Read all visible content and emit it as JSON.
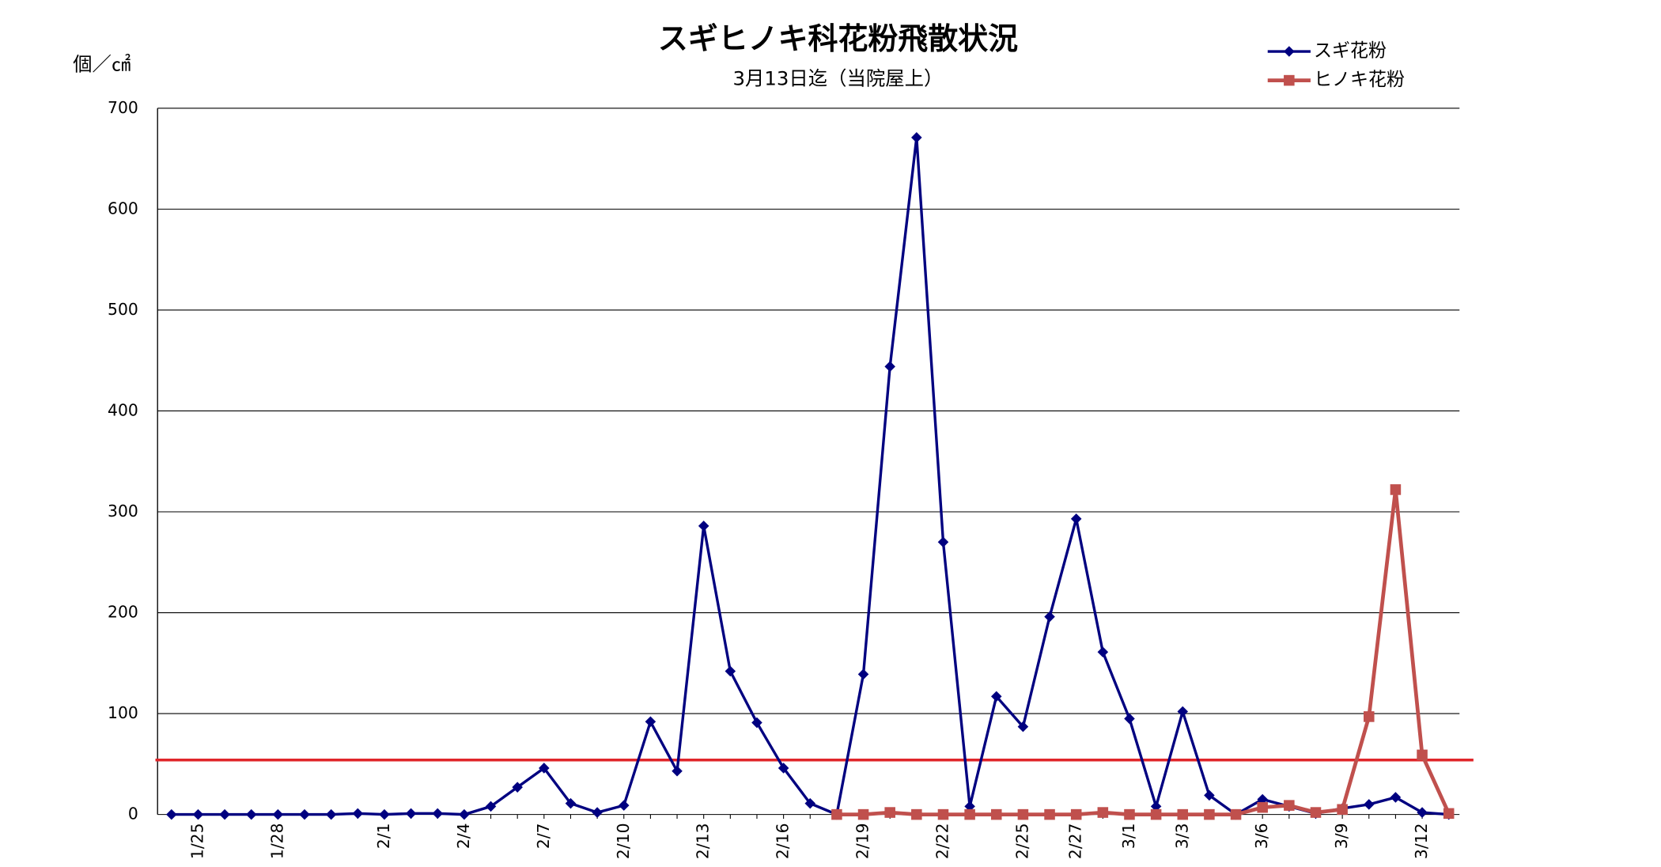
{
  "chart_data": {
    "type": "line",
    "title": "スギヒノキ科花粉飛散状況",
    "subtitle": "3月13日迄（当院屋上）",
    "y_label": "個／㎠",
    "categories": [
      null,
      "1/25",
      null,
      null,
      "1/28",
      null,
      null,
      null,
      "2/1",
      null,
      null,
      "2/4",
      null,
      null,
      "2/7",
      null,
      null,
      "2/10",
      null,
      null,
      "2/13",
      null,
      null,
      "2/16",
      null,
      null,
      "2/19",
      null,
      null,
      "2/22",
      null,
      null,
      "2/25",
      null,
      "2/27",
      null,
      "3/1",
      null,
      "3/3",
      null,
      null,
      "3/6",
      null,
      null,
      "3/9",
      null,
      null,
      "3/12",
      null
    ],
    "series": [
      {
        "name": "スギ花粉",
        "color": "#000080",
        "marker": "diamond",
        "values": [
          0,
          0,
          0,
          0,
          0,
          0,
          0,
          1,
          0,
          1,
          1,
          0,
          8,
          27,
          46,
          11,
          2,
          9,
          92,
          43,
          286,
          142,
          91,
          46,
          11,
          0,
          139,
          444,
          671,
          270,
          8,
          117,
          87,
          196,
          293,
          161,
          95,
          8,
          102,
          19,
          0,
          15,
          8,
          1,
          6,
          10,
          17,
          2,
          0
        ]
      },
      {
        "name": "ヒノキ花粉",
        "color": "#c0504d",
        "marker": "square",
        "values": [
          null,
          null,
          null,
          null,
          null,
          null,
          null,
          null,
          null,
          null,
          null,
          null,
          null,
          null,
          null,
          null,
          null,
          null,
          null,
          null,
          null,
          null,
          null,
          null,
          null,
          0,
          0,
          2,
          0,
          0,
          0,
          0,
          0,
          0,
          0,
          2,
          0,
          0,
          0,
          0,
          0,
          7,
          9,
          2,
          5,
          97,
          322,
          59,
          1
        ]
      }
    ],
    "reference_line": {
      "value": 54,
      "color": "#e0262a"
    },
    "ylim": [
      0,
      700
    ],
    "yticks": [
      0,
      100,
      200,
      300,
      400,
      500,
      600,
      700
    ],
    "grid": true,
    "legend": "top-right"
  }
}
